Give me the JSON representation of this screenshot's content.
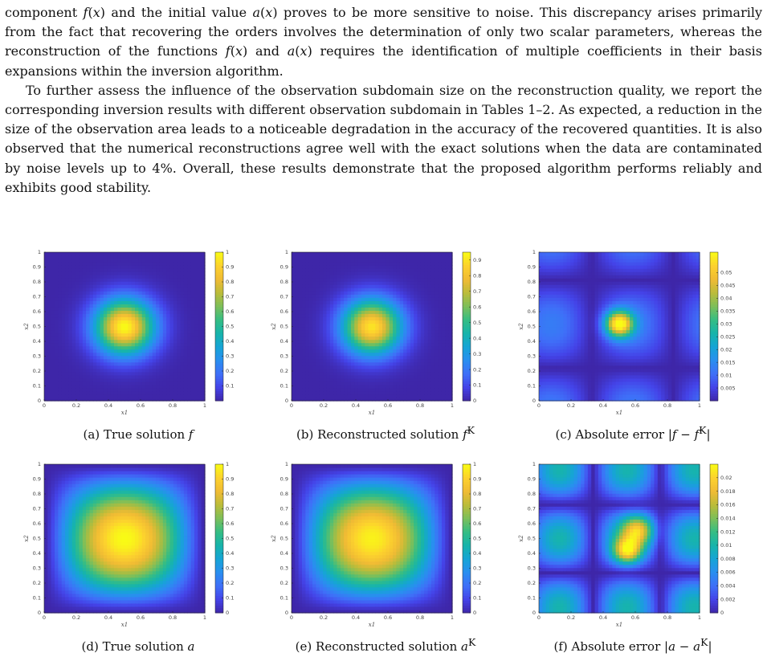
{
  "paragraphs": [
    "component f(x) and the initial value a(x) proves to be more sensitive to noise. This discrepancy arises primarily from the fact that recovering the orders involves the determination of only two scalar parameters, whereas the reconstruction of the functions f(x) and a(x) requires the identification of multiple coefficients in their basis expansions within the inversion algorithm.",
    "To further assess the influence of the observation subdomain size on the reconstruction quality, we report the corresponding inversion results with different observation subdomain in Tables 1–2. As expected, a reduction in the size of the observation area leads to a noticeable degradation in the accuracy of the recovered quantities. It is also observed that the numerical reconstructions agree well with the exact solutions when the data are contaminated by noise levels up to 4%. Overall, these results demonstrate that the proposed algorithm performs reliably and exhibits good stability."
  ],
  "colormap": [
    "#3e26a8",
    "#4443e8",
    "#3f6ff8",
    "#2a8ef0",
    "#16a4d6",
    "#17b4ab",
    "#35bd84",
    "#7cbf5a",
    "#bbbc3a",
    "#f0bb34",
    "#fcd12e",
    "#f9fb15"
  ],
  "axes": {
    "x_label": "x1",
    "y_label": "x2",
    "x_ticks": [
      "0",
      "0.2",
      "0.4",
      "0.6",
      "0.8",
      "1"
    ],
    "y_ticks": [
      "0",
      "0.1",
      "0.2",
      "0.3",
      "0.4",
      "0.5",
      "0.6",
      "0.7",
      "0.8",
      "0.9",
      "1"
    ]
  },
  "panels": [
    {
      "label": "(a)",
      "caption_text": "True solution",
      "caption_symbol": "f",
      "caption_sup": "",
      "caption_close": "",
      "colorbar_ticks": [
        "0.1",
        "0.2",
        "0.3",
        "0.4",
        "0.5",
        "0.6",
        "0.7",
        "0.8",
        "0.9",
        "1"
      ],
      "colorbar_max": 1
    },
    {
      "label": "(b)",
      "caption_text": "Reconstructed solution",
      "caption_symbol": "f",
      "caption_sup": "K",
      "caption_close": "",
      "colorbar_ticks": [
        "0",
        "0.1",
        "0.2",
        "0.3",
        "0.4",
        "0.5",
        "0.6",
        "0.7",
        "0.8",
        "0.9"
      ],
      "colorbar_max": 0.95
    },
    {
      "label": "(c)",
      "caption_text": "Absolute error",
      "caption_symbol": "|f − f",
      "caption_sup": "K",
      "caption_close": "|",
      "colorbar_ticks": [
        "0.005",
        "0.01",
        "0.015",
        "0.02",
        "0.025",
        "0.03",
        "0.035",
        "0.04",
        "0.045",
        "0.05"
      ],
      "colorbar_max": 0.058
    },
    {
      "label": "(d)",
      "caption_text": "True solution",
      "caption_symbol": "a",
      "caption_sup": "",
      "caption_close": "",
      "colorbar_ticks": [
        "0",
        "0.1",
        "0.2",
        "0.3",
        "0.4",
        "0.5",
        "0.6",
        "0.7",
        "0.8",
        "0.9",
        "1"
      ],
      "colorbar_max": 1
    },
    {
      "label": "(e)",
      "caption_text": "Reconstructed solution",
      "caption_symbol": "a",
      "caption_sup": "K",
      "caption_close": "",
      "colorbar_ticks": [
        "0",
        "0.1",
        "0.2",
        "0.3",
        "0.4",
        "0.5",
        "0.6",
        "0.7",
        "0.8",
        "0.9",
        "1"
      ],
      "colorbar_max": 1
    },
    {
      "label": "(f)",
      "caption_text": "Absolute error",
      "caption_symbol": "|a − a",
      "caption_sup": "K",
      "caption_close": "|",
      "colorbar_ticks": [
        "0",
        "0.002",
        "0.004",
        "0.006",
        "0.008",
        "0.01",
        "0.012",
        "0.014",
        "0.016",
        "0.018",
        "0.02"
      ],
      "colorbar_max": 0.022
    }
  ]
}
